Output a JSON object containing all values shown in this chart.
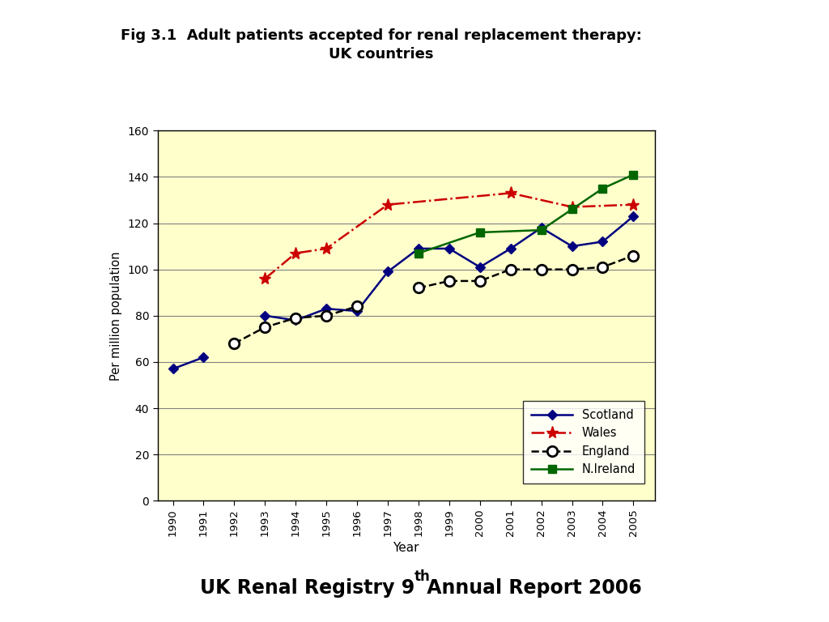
{
  "title_line1": "Fig 3.1  Adult patients accepted for renal replacement therapy:",
  "title_line2": "UK countries",
  "xlabel": "Year",
  "ylabel": "Per million population",
  "footer_main": "UK Renal Registry 9",
  "footer_super": "th",
  "footer_tail": " Annual Report 2006",
  "years": [
    1990,
    1991,
    1992,
    1993,
    1994,
    1995,
    1996,
    1997,
    1998,
    1999,
    2000,
    2001,
    2002,
    2003,
    2004,
    2005
  ],
  "scotland": [
    57,
    62,
    null,
    80,
    78,
    83,
    82,
    99,
    109,
    109,
    101,
    109,
    118,
    110,
    112,
    123
  ],
  "wales": [
    null,
    null,
    null,
    96,
    107,
    109,
    null,
    128,
    null,
    null,
    null,
    133,
    null,
    127,
    null,
    128
  ],
  "england": [
    null,
    null,
    68,
    75,
    79,
    80,
    84,
    null,
    92,
    95,
    95,
    100,
    100,
    100,
    101,
    106
  ],
  "nireland": [
    null,
    null,
    null,
    null,
    null,
    null,
    null,
    null,
    107,
    null,
    116,
    null,
    117,
    126,
    135,
    141
  ],
  "ylim": [
    0,
    160
  ],
  "yticks": [
    0,
    20,
    40,
    60,
    80,
    100,
    120,
    140,
    160
  ],
  "bg_color": "#ffffcc",
  "fig_bg": "#ffffff",
  "scotland_color": "#000080",
  "wales_color": "#cc0000",
  "england_color": "#000000",
  "nireland_color": "#006600",
  "grid_color": "#808080"
}
